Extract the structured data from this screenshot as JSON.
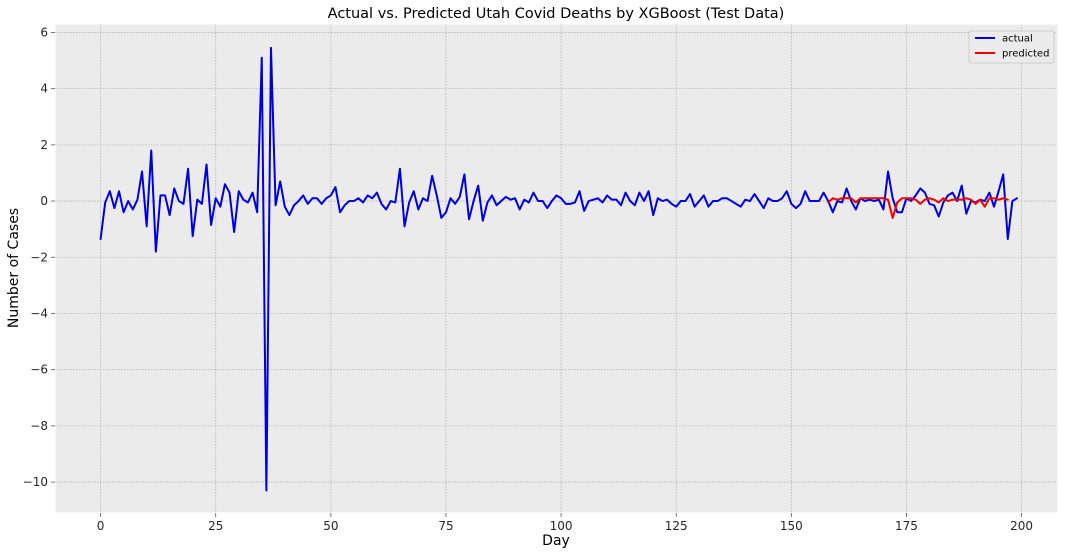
{
  "chart_data": {
    "type": "line",
    "title": "Actual vs. Predicted Utah Covid Deaths by XGBoost (Test Data)",
    "xlabel": "Day",
    "ylabel": "Number of Cases",
    "xlim": [
      -9.9,
      207.9
    ],
    "ylim": [
      -11.1,
      6.3
    ],
    "xticks": [
      0,
      25,
      50,
      75,
      100,
      125,
      150,
      175,
      200
    ],
    "yticks": [
      -10,
      -8,
      -6,
      -4,
      -2,
      0,
      2,
      4,
      6
    ],
    "ytick_labels": [
      "−10",
      "−8",
      "−6",
      "−4",
      "−2",
      "0",
      "2",
      "4",
      "6"
    ],
    "grid": true,
    "legend_position": "top-right",
    "series": [
      {
        "name": "actual",
        "color": "#0000dd",
        "x_start": 0,
        "values": [
          -1.35,
          -0.05,
          0.35,
          -0.25,
          0.35,
          -0.4,
          0.0,
          -0.3,
          0.05,
          1.05,
          -0.9,
          1.8,
          -1.8,
          0.2,
          0.2,
          -0.5,
          0.45,
          0.0,
          -0.1,
          1.15,
          -1.25,
          0.05,
          -0.1,
          1.3,
          -0.85,
          0.1,
          -0.2,
          0.6,
          0.3,
          -1.1,
          0.35,
          0.05,
          -0.05,
          0.3,
          -0.4,
          5.1,
          -10.3,
          5.45,
          -0.15,
          0.7,
          -0.2,
          -0.5,
          -0.15,
          0.0,
          0.2,
          -0.1,
          0.1,
          0.1,
          -0.1,
          0.1,
          0.2,
          0.5,
          -0.4,
          -0.15,
          0.0,
          0.0,
          0.1,
          -0.05,
          0.2,
          0.1,
          0.3,
          -0.1,
          -0.3,
          0.0,
          -0.05,
          1.15,
          -0.9,
          -0.05,
          0.35,
          -0.3,
          0.1,
          0.0,
          0.9,
          0.2,
          -0.6,
          -0.4,
          0.1,
          -0.1,
          0.15,
          0.95,
          -0.65,
          0.0,
          0.55,
          -0.7,
          -0.05,
          0.2,
          -0.15,
          0.0,
          0.15,
          0.05,
          0.1,
          -0.3,
          0.05,
          -0.05,
          0.3,
          0.0,
          0.0,
          -0.25,
          0.0,
          0.2,
          0.1,
          -0.1,
          -0.1,
          -0.05,
          0.35,
          -0.35,
          0.0,
          0.05,
          0.1,
          -0.05,
          0.2,
          0.05,
          0.05,
          -0.15,
          0.3,
          0.0,
          -0.15,
          0.3,
          0.0,
          0.35,
          -0.5,
          0.1,
          0.0,
          0.05,
          -0.1,
          -0.2,
          0.0,
          0.0,
          0.25,
          -0.2,
          0.0,
          0.2,
          -0.2,
          0.0,
          0.0,
          0.1,
          0.1,
          0.0,
          -0.1,
          -0.2,
          0.05,
          0.0,
          0.25,
          0.0,
          -0.25,
          0.1,
          0.0,
          0.0,
          0.1,
          0.35,
          -0.1,
          -0.25,
          -0.1,
          0.35,
          0.0,
          0.0,
          0.0,
          0.3,
          0.0,
          -0.4,
          0.0,
          -0.05,
          0.45,
          0.0,
          -0.3,
          0.1,
          0.0,
          0.05,
          0.0,
          0.05,
          -0.3,
          1.05,
          0.1,
          -0.4,
          -0.4,
          0.1,
          0.0,
          0.2,
          0.45,
          0.3,
          -0.1,
          -0.15,
          -0.55,
          -0.05,
          0.2,
          0.3,
          0.0,
          0.55,
          -0.45,
          0.0,
          -0.05,
          0.05,
          0.0,
          0.3,
          -0.2,
          0.35,
          0.95,
          -1.35,
          0.0,
          0.1
        ]
      },
      {
        "name": "predicted",
        "color": "#ee0000",
        "x_start": 158,
        "values": [
          -0.05,
          0.1,
          0.05,
          0.1,
          0.1,
          0.1,
          -0.05,
          0.1,
          0.1,
          0.1,
          0.1,
          0.1,
          0.1,
          0.05,
          -0.6,
          -0.05,
          0.1,
          0.1,
          0.1,
          0.05,
          -0.1,
          0.05,
          0.1,
          0.05,
          -0.05,
          0.1,
          0.0,
          0.05,
          0.05,
          0.05,
          0.1,
          0.05,
          -0.1,
          0.05,
          -0.2,
          0.1,
          0.1,
          0.05,
          0.1,
          0.05
        ]
      }
    ]
  }
}
